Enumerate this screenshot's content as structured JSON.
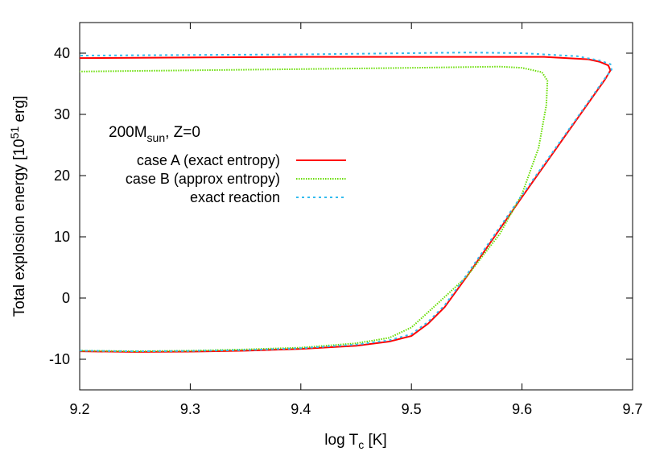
{
  "chart_data": {
    "type": "line",
    "xlabel": "log T",
    "xlabel_sub": "c",
    "xlabel_unit": " [K]",
    "ylabel": "Total explosion energy [10",
    "ylabel_sup": "51",
    "ylabel_unit": " erg]",
    "xlim": [
      9.2,
      9.7
    ],
    "ylim": [
      -15,
      45
    ],
    "xticks": [
      "9.2",
      "9.3",
      "9.4",
      "9.5",
      "9.6",
      "9.7"
    ],
    "yticks": [
      "-10",
      "0",
      "10",
      "20",
      "30",
      "40"
    ],
    "grid": false,
    "legend_placement": "top-left",
    "annotation": {
      "main": "200M",
      "sub": "sun",
      "rest": ", Z=0"
    },
    "series": [
      {
        "name": "case A (exact entropy)",
        "color": "#ff0000",
        "style": "solid",
        "x": [
          9.2,
          9.25,
          9.3,
          9.35,
          9.4,
          9.45,
          9.48,
          9.5,
          9.515,
          9.53,
          9.55,
          9.6,
          9.65,
          9.675,
          9.68,
          9.678,
          9.67,
          9.66,
          9.62,
          9.5,
          9.4,
          9.2
        ],
        "y": [
          -8.7,
          -8.8,
          -8.75,
          -8.6,
          -8.3,
          -7.8,
          -7.1,
          -6.2,
          -4.2,
          -1.5,
          3.5,
          16.5,
          29.3,
          35.7,
          37.2,
          38,
          38.6,
          39,
          39.4,
          39.4,
          39.4,
          39.2
        ]
      },
      {
        "name": "case B (approx entropy)",
        "color": "#66dd00",
        "style": "dotted",
        "x": [
          9.2,
          9.25,
          9.3,
          9.35,
          9.4,
          9.45,
          9.48,
          9.5,
          9.52,
          9.55,
          9.58,
          9.6,
          9.615,
          9.622,
          9.623,
          9.618,
          9.6,
          9.58,
          9.5,
          9.4,
          9.2
        ],
        "y": [
          -8.6,
          -8.7,
          -8.6,
          -8.4,
          -8.1,
          -7.4,
          -6.5,
          -4.8,
          -1.5,
          3.5,
          10.5,
          17.0,
          24.5,
          31.5,
          35.5,
          36.9,
          37.6,
          37.8,
          37.6,
          37.4,
          37.0
        ]
      },
      {
        "name": "exact reaction",
        "color": "#33bbee",
        "style": "dashed",
        "x": [
          9.2,
          9.25,
          9.3,
          9.35,
          9.4,
          9.45,
          9.48,
          9.5,
          9.515,
          9.53,
          9.55,
          9.6,
          9.65,
          9.675,
          9.681,
          9.68,
          9.67,
          9.65,
          9.6,
          9.55,
          9.4,
          9.2
        ],
        "y": [
          -8.6,
          -8.7,
          -8.65,
          -8.5,
          -8.2,
          -7.6,
          -6.9,
          -5.9,
          -3.9,
          -1.2,
          3.8,
          16.8,
          29.5,
          35.9,
          37.3,
          38.2,
          38.8,
          39.5,
          40.0,
          40.1,
          39.8,
          39.6
        ]
      }
    ]
  }
}
